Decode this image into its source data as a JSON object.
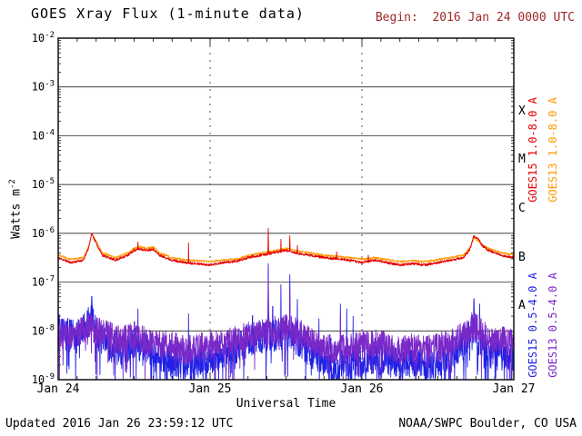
{
  "header": {
    "title": "GOES Xray Flux (1-minute data)",
    "begin_label": "Begin:  2016 Jan 24 0000 UTC"
  },
  "footer": {
    "updated": "Updated 2016 Jan 26 23:59:12 UTC",
    "source": "NOAA/SWPC Boulder, CO USA"
  },
  "colors": {
    "goes15_long": "#e60000",
    "goes13_long": "#ff9900",
    "goes15_short": "#2222e6",
    "goes13_short": "#7a28c8",
    "begin_text": "#a02828",
    "axis": "#000000"
  },
  "chart_data": {
    "type": "line",
    "title": "GOES Xray Flux (1-minute data)",
    "xlabel": "Universal Time",
    "ylabel": "Watts m^-2",
    "ylabel_base": "Watts m",
    "ylabel_exp": "-2",
    "x_range_hours": [
      0,
      72
    ],
    "y_log_range": [
      -9,
      -2
    ],
    "y_tick_exponents": [
      -2,
      -3,
      -4,
      -5,
      -6,
      -7,
      -8,
      -9
    ],
    "x_ticks": [
      {
        "hour": 0,
        "label": "Jan 24"
      },
      {
        "hour": 24,
        "label": "Jan 25"
      },
      {
        "hour": 48,
        "label": "Jan 26"
      },
      {
        "hour": 72,
        "label": "Jan 27"
      }
    ],
    "grid": {
      "h_line_exponents": [
        -3,
        -4,
        -5,
        -6,
        -7,
        -8
      ],
      "v_dashed_hours": [
        24,
        48
      ]
    },
    "flare_classes": [
      {
        "label": "X",
        "exp": -3.5
      },
      {
        "label": "M",
        "exp": -4.5
      },
      {
        "label": "C",
        "exp": -5.5
      },
      {
        "label": "B",
        "exp": -6.5
      },
      {
        "label": "A",
        "exp": -7.5
      }
    ],
    "right_labels": [
      {
        "text": "GOES15 1.0-8.0 A",
        "color_key": "goes15_long",
        "column": 0,
        "row": 0
      },
      {
        "text": "GOES13 1.0-8.0 A",
        "color_key": "goes13_long",
        "column": 1,
        "row": 0
      },
      {
        "text": "GOES15 0.5-4.0 A",
        "color_key": "goes15_short",
        "column": 0,
        "row": 1
      },
      {
        "text": "GOES13 0.5-4.0 A",
        "color_key": "goes13_short",
        "column": 1,
        "row": 1
      }
    ],
    "series": [
      {
        "name": "GOES15 0.5-4.0 A",
        "color_key": "goes15_short",
        "seed": 33,
        "noise": 0.33,
        "downspike": [
          0.07,
          1.2
        ],
        "baseline": [
          [
            0,
            -7.95
          ],
          [
            1,
            -8.05
          ],
          [
            3,
            -8.1
          ],
          [
            4.6,
            -7.85
          ],
          [
            5.3,
            -7.75
          ],
          [
            6,
            -8.05
          ],
          [
            8,
            -8.3
          ],
          [
            10,
            -8.45
          ],
          [
            12,
            -8.25
          ],
          [
            14,
            -8.35
          ],
          [
            16,
            -8.5
          ],
          [
            18,
            -8.6
          ],
          [
            20,
            -8.7
          ],
          [
            22,
            -8.65
          ],
          [
            24,
            -8.55
          ],
          [
            26,
            -8.45
          ],
          [
            28,
            -8.35
          ],
          [
            30,
            -8.2
          ],
          [
            32,
            -8.15
          ],
          [
            34,
            -8.1
          ],
          [
            36,
            -8.05
          ],
          [
            38,
            -8.2
          ],
          [
            40,
            -8.45
          ],
          [
            42,
            -8.6
          ],
          [
            44,
            -8.75
          ],
          [
            46,
            -8.7
          ],
          [
            48,
            -8.6
          ],
          [
            50,
            -8.55
          ],
          [
            52,
            -8.6
          ],
          [
            54,
            -8.7
          ],
          [
            56,
            -8.65
          ],
          [
            58,
            -8.7
          ],
          [
            60,
            -8.65
          ],
          [
            62,
            -8.5
          ],
          [
            64,
            -8.3
          ],
          [
            65.3,
            -7.95
          ],
          [
            66.2,
            -8.0
          ],
          [
            67,
            -8.25
          ],
          [
            68,
            -8.45
          ],
          [
            70,
            -8.5
          ],
          [
            72,
            -8.5
          ]
        ],
        "spikes": [
          [
            0.5,
            -7.45,
            0.12
          ],
          [
            1.3,
            -7.55,
            0.1
          ],
          [
            5.3,
            -7.05,
            0.18
          ],
          [
            12.6,
            -7.55,
            0.1
          ],
          [
            20.6,
            -7.65,
            0.08
          ],
          [
            25.5,
            -7.55,
            0.08
          ],
          [
            28.7,
            -7.7,
            0.08
          ],
          [
            30.7,
            -7.25,
            0.1
          ],
          [
            33.2,
            -6.62,
            0.12
          ],
          [
            33.9,
            -6.95,
            0.08
          ],
          [
            35.2,
            -7.05,
            0.1
          ],
          [
            36.6,
            -6.85,
            0.12
          ],
          [
            37.8,
            -7.35,
            0.08
          ],
          [
            41.2,
            -7.75,
            0.08
          ],
          [
            43.1,
            -7.6,
            0.08
          ],
          [
            44.6,
            -7.45,
            0.1
          ],
          [
            45.6,
            -7.55,
            0.08
          ],
          [
            46.6,
            -7.7,
            0.08
          ],
          [
            65.7,
            -7.05,
            0.15
          ],
          [
            66.6,
            -7.45,
            0.08
          ]
        ]
      },
      {
        "name": "GOES13 0.5-4.0 A",
        "color_key": "goes13_short",
        "seed": 44,
        "noise": 0.3,
        "downspike": [
          0.05,
          0.9
        ],
        "baseline": [
          [
            0,
            -8.05
          ],
          [
            2,
            -8.1
          ],
          [
            4,
            -8.0
          ],
          [
            5.3,
            -7.9
          ],
          [
            6,
            -8.0
          ],
          [
            8,
            -8.1
          ],
          [
            10,
            -8.2
          ],
          [
            12,
            -8.1
          ],
          [
            14,
            -8.2
          ],
          [
            16,
            -8.3
          ],
          [
            18,
            -8.3
          ],
          [
            20,
            -8.4
          ],
          [
            22,
            -8.35
          ],
          [
            24,
            -8.3
          ],
          [
            26,
            -8.25
          ],
          [
            28,
            -8.2
          ],
          [
            30,
            -8.1
          ],
          [
            32,
            -8.05
          ],
          [
            34,
            -8.0
          ],
          [
            36,
            -7.95
          ],
          [
            38,
            -8.05
          ],
          [
            40,
            -8.2
          ],
          [
            42,
            -8.3
          ],
          [
            44,
            -8.4
          ],
          [
            46,
            -8.35
          ],
          [
            48,
            -8.3
          ],
          [
            50,
            -8.25
          ],
          [
            52,
            -8.3
          ],
          [
            54,
            -8.4
          ],
          [
            56,
            -8.35
          ],
          [
            58,
            -8.4
          ],
          [
            60,
            -8.35
          ],
          [
            62,
            -8.25
          ],
          [
            64,
            -8.1
          ],
          [
            65.3,
            -7.9
          ],
          [
            66.2,
            -7.95
          ],
          [
            67,
            -8.05
          ],
          [
            68,
            -8.2
          ],
          [
            70,
            -8.2
          ],
          [
            72,
            -8.25
          ]
        ],
        "spikes": [
          [
            5.3,
            -7.35,
            0.12
          ],
          [
            30.7,
            -7.55,
            0.08
          ],
          [
            33.2,
            -6.95,
            0.1
          ],
          [
            36.6,
            -7.15,
            0.1
          ],
          [
            44.6,
            -7.65,
            0.08
          ],
          [
            65.7,
            -7.35,
            0.12
          ]
        ]
      },
      {
        "name": "GOES13 1.0-8.0 A",
        "color_key": "goes13_long",
        "seed": 22,
        "noise": 0.02,
        "baseline": [
          [
            0,
            -6.44
          ],
          [
            2,
            -6.53
          ],
          [
            4,
            -6.5
          ],
          [
            4.8,
            -6.27
          ],
          [
            5.3,
            -6.02
          ],
          [
            5.9,
            -6.14
          ],
          [
            7,
            -6.4
          ],
          [
            9,
            -6.5
          ],
          [
            11,
            -6.4
          ],
          [
            12,
            -6.31
          ],
          [
            13,
            -6.28
          ],
          [
            14,
            -6.31
          ],
          [
            15,
            -6.28
          ],
          [
            16,
            -6.4
          ],
          [
            18,
            -6.5
          ],
          [
            20,
            -6.55
          ],
          [
            22,
            -6.56
          ],
          [
            24,
            -6.58
          ],
          [
            26,
            -6.55
          ],
          [
            28,
            -6.53
          ],
          [
            30,
            -6.46
          ],
          [
            32,
            -6.41
          ],
          [
            34,
            -6.36
          ],
          [
            36,
            -6.31
          ],
          [
            38,
            -6.37
          ],
          [
            40,
            -6.4
          ],
          [
            42,
            -6.45
          ],
          [
            44,
            -6.47
          ],
          [
            46,
            -6.5
          ],
          [
            48,
            -6.53
          ],
          [
            50,
            -6.5
          ],
          [
            52,
            -6.54
          ],
          [
            54,
            -6.58
          ],
          [
            56,
            -6.56
          ],
          [
            58,
            -6.58
          ],
          [
            60,
            -6.54
          ],
          [
            62,
            -6.5
          ],
          [
            64,
            -6.45
          ],
          [
            65,
            -6.31
          ],
          [
            65.7,
            -6.1
          ],
          [
            66.4,
            -6.15
          ],
          [
            67,
            -6.24
          ],
          [
            68,
            -6.31
          ],
          [
            70,
            -6.4
          ],
          [
            72,
            -6.44
          ]
        ],
        "spikes": [
          [
            12.6,
            -6.22,
            0.15
          ],
          [
            30.7,
            -6.2,
            0.12
          ],
          [
            33.2,
            -6.02,
            0.15
          ],
          [
            36.6,
            -6.12,
            0.15
          ]
        ]
      },
      {
        "name": "GOES15 1.0-8.0 A",
        "color_key": "goes15_long",
        "seed": 11,
        "noise": 0.025,
        "baseline": [
          [
            0,
            -6.5
          ],
          [
            2,
            -6.6
          ],
          [
            4,
            -6.55
          ],
          [
            4.8,
            -6.3
          ],
          [
            5.3,
            -6.0
          ],
          [
            5.9,
            -6.18
          ],
          [
            7,
            -6.45
          ],
          [
            9,
            -6.55
          ],
          [
            11,
            -6.45
          ],
          [
            12,
            -6.35
          ],
          [
            13,
            -6.32
          ],
          [
            14,
            -6.35
          ],
          [
            15,
            -6.32
          ],
          [
            16,
            -6.45
          ],
          [
            18,
            -6.55
          ],
          [
            20,
            -6.6
          ],
          [
            22,
            -6.62
          ],
          [
            24,
            -6.65
          ],
          [
            26,
            -6.6
          ],
          [
            28,
            -6.58
          ],
          [
            30,
            -6.5
          ],
          [
            32,
            -6.45
          ],
          [
            34,
            -6.4
          ],
          [
            36,
            -6.35
          ],
          [
            38,
            -6.42
          ],
          [
            40,
            -6.45
          ],
          [
            42,
            -6.5
          ],
          [
            44,
            -6.52
          ],
          [
            46,
            -6.55
          ],
          [
            48,
            -6.6
          ],
          [
            50,
            -6.55
          ],
          [
            52,
            -6.6
          ],
          [
            54,
            -6.65
          ],
          [
            56,
            -6.62
          ],
          [
            58,
            -6.65
          ],
          [
            60,
            -6.6
          ],
          [
            62,
            -6.55
          ],
          [
            64,
            -6.5
          ],
          [
            65,
            -6.35
          ],
          [
            65.7,
            -6.05
          ],
          [
            66.4,
            -6.12
          ],
          [
            67,
            -6.25
          ],
          [
            68,
            -6.35
          ],
          [
            70,
            -6.45
          ],
          [
            72,
            -6.5
          ]
        ],
        "spikes": [
          [
            12.6,
            -6.18,
            0.2
          ],
          [
            13.5,
            -6.22,
            0.15
          ],
          [
            20.6,
            -6.2,
            0.12
          ],
          [
            25.5,
            -6.32,
            0.15
          ],
          [
            28.7,
            -6.35,
            0.15
          ],
          [
            30.7,
            -6.15,
            0.15
          ],
          [
            33.2,
            -5.9,
            0.2
          ],
          [
            34.3,
            -6.22,
            0.12
          ],
          [
            35.2,
            -6.12,
            0.15
          ],
          [
            36.6,
            -6.05,
            0.2
          ],
          [
            37.8,
            -6.25,
            0.15
          ],
          [
            39.5,
            -6.32,
            0.15
          ],
          [
            44.0,
            -6.38,
            0.15
          ],
          [
            49.0,
            -6.45,
            0.15
          ]
        ]
      }
    ]
  }
}
